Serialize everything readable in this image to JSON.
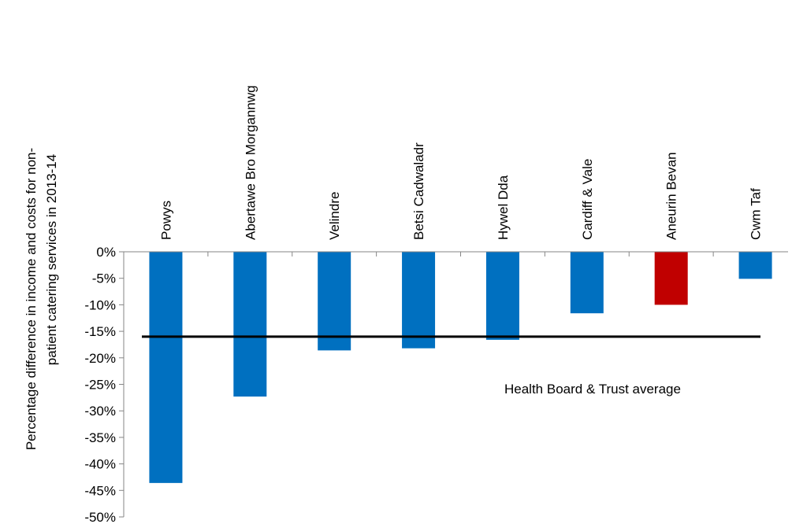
{
  "chart_data": {
    "type": "bar",
    "title": "",
    "ylabel_lines": [
      "Percentage difference in income and costs for non-",
      "patient catering services in 2013-14"
    ],
    "xlabel": "",
    "ylim": [
      -50,
      0
    ],
    "yticks": [
      0,
      -5,
      -10,
      -15,
      -20,
      -25,
      -30,
      -35,
      -40,
      -45,
      -50
    ],
    "ytick_labels": [
      "0%",
      "-5%",
      "-10%",
      "-15%",
      "-20%",
      "-25%",
      "-30%",
      "-35%",
      "-40%",
      "-45%",
      "-50%"
    ],
    "categories": [
      "Powys",
      "Abertawe Bro Morgannwg",
      "Velindre",
      "Betsi Cadwaladr",
      "Hywel Dda",
      "Cardiff & Vale",
      "Aneurin Bevan",
      "Cwm Taf"
    ],
    "values": [
      -43.6,
      -27.3,
      -18.6,
      -18.2,
      -16.6,
      -11.6,
      -10.0,
      -5.1
    ],
    "bar_colors": [
      "#0070c0",
      "#0070c0",
      "#0070c0",
      "#0070c0",
      "#0070c0",
      "#0070c0",
      "#c00000",
      "#0070c0"
    ],
    "average": {
      "label": "Health Board & Trust average",
      "value": -16.0,
      "color": "#000000"
    },
    "grid": false,
    "legend": "none"
  }
}
